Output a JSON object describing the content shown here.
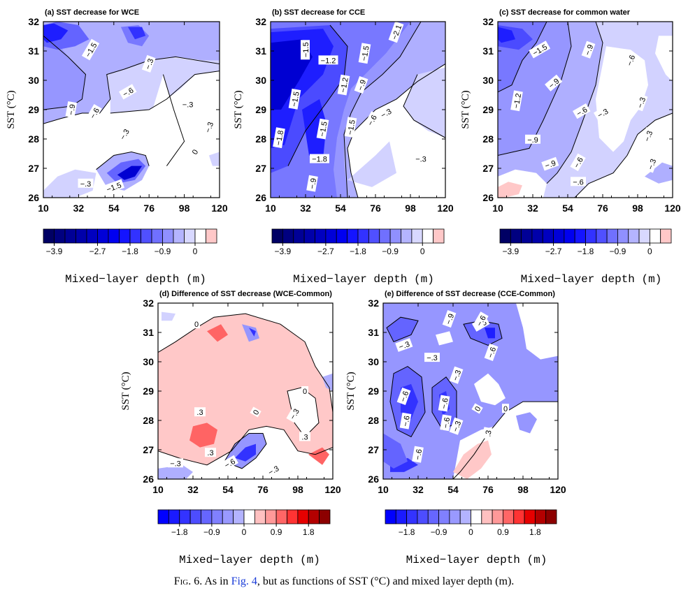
{
  "chart_data": [
    {
      "panel": "a",
      "type": "heatmap",
      "title": "(a) SST decrease for WCE",
      "xlabel": "Mixed−layer depth (m)",
      "ylabel": "SST (°C)",
      "xlim": [
        10,
        120
      ],
      "ylim": [
        26,
        32
      ],
      "xticks": [
        "10",
        "32",
        "54",
        "76",
        "98",
        "120"
      ],
      "yticks": [
        "26",
        "27",
        "28",
        "29",
        "30",
        "31",
        "32"
      ],
      "colorbar": {
        "levels": [
          -4.2,
          -3.9,
          -3.6,
          -3.3,
          -3.0,
          -2.7,
          -2.4,
          -2.1,
          -1.8,
          -1.5,
          -1.2,
          -0.9,
          -0.6,
          -0.3,
          0,
          0.3,
          0.6
        ],
        "tick_labels": [
          "−3.9",
          "−2.7",
          "−1.8",
          "−0.9",
          "0"
        ]
      },
      "contour_labels": [
        "−1.5",
        "−.3",
        "−.6",
        "−.9",
        "−.6",
        "−.3",
        "−.3",
        "−.3",
        "0",
        "−.3",
        "−1.5"
      ]
    },
    {
      "panel": "b",
      "type": "heatmap",
      "title": "(b) SST decrease for CCE",
      "xlabel": "Mixed−layer depth (m)",
      "ylabel": "SST (°C)",
      "xlim": [
        10,
        120
      ],
      "ylim": [
        26,
        32
      ],
      "xticks": [
        "10",
        "32",
        "54",
        "76",
        "98",
        "120"
      ],
      "yticks": [
        "26",
        "27",
        "28",
        "29",
        "30",
        "31",
        "32"
      ],
      "colorbar": {
        "levels": [
          -4.2,
          -3.9,
          -3.6,
          -3.3,
          -3.0,
          -2.7,
          -2.4,
          -2.1,
          -1.8,
          -1.5,
          -1.2,
          -0.9,
          -0.6,
          -0.3,
          0,
          0.3,
          0.6
        ],
        "tick_labels": [
          "−3.9",
          "−2.7",
          "−1.8",
          "−0.9",
          "0"
        ]
      },
      "contour_labels": [
        "−2.1",
        "−1.5",
        "−1.2",
        "−1.5",
        "−1.5",
        "−1.2",
        "−1.5",
        "−1.5",
        "−.9",
        "−.6",
        "−.3",
        "−1.8",
        "−1.8",
        "−.9",
        "−.3"
      ]
    },
    {
      "panel": "c",
      "type": "heatmap",
      "title": "(c) SST decrease for common water",
      "xlabel": "Mixed−layer depth (m)",
      "ylabel": "SST (°C)",
      "xlim": [
        10,
        120
      ],
      "ylim": [
        26,
        32
      ],
      "xticks": [
        "10",
        "32",
        "54",
        "76",
        "98",
        "120"
      ],
      "yticks": [
        "26",
        "27",
        "28",
        "29",
        "30",
        "31",
        "32"
      ],
      "colorbar": {
        "levels": [
          -4.2,
          -3.9,
          -3.6,
          -3.3,
          -3.0,
          -2.7,
          -2.4,
          -2.1,
          -1.8,
          -1.5,
          -1.2,
          -0.9,
          -0.6,
          -0.3,
          0,
          0.3,
          0.6
        ],
        "tick_labels": [
          "−3.9",
          "−2.7",
          "−1.8",
          "−0.9",
          "0"
        ]
      },
      "contour_labels": [
        "−1.5",
        "−.9",
        "−.6",
        "−.3",
        "−.9",
        "−1.2",
        "−.6",
        "−.3",
        "−.9",
        "−.3",
        "−.9",
        "−.6",
        "−.6",
        "−.3"
      ]
    },
    {
      "panel": "d",
      "type": "heatmap",
      "title": "(d) Difference of SST decrease (WCE-Common)",
      "xlabel": "Mixed−layer depth (m)",
      "ylabel": "SST (°C)",
      "xlim": [
        10,
        120
      ],
      "ylim": [
        26,
        32
      ],
      "xticks": [
        "10",
        "32",
        "54",
        "76",
        "98",
        "120"
      ],
      "yticks": [
        "26",
        "27",
        "28",
        "29",
        "30",
        "31",
        "32"
      ],
      "colorbar": {
        "levels": [
          -2.4,
          -2.1,
          -1.8,
          -1.5,
          -1.2,
          -0.9,
          -0.6,
          -0.3,
          0,
          0.3,
          0.6,
          0.9,
          1.2,
          1.5,
          1.8,
          2.1,
          2.4
        ],
        "tick_labels": [
          "−1.8",
          "−0.9",
          "0",
          "0.9",
          "1.8"
        ]
      },
      "contour_labels": [
        "0",
        "0",
        ".3",
        "0",
        "−.3",
        ".3",
        "−.3",
        ".3",
        "−.6",
        "−.3"
      ]
    },
    {
      "panel": "e",
      "type": "heatmap",
      "title": "(e) Difference of SST decrease (CCE-Common)",
      "xlabel": "Mixed−layer depth (m)",
      "ylabel": "SST (°C)",
      "xlim": [
        10,
        120
      ],
      "ylim": [
        26,
        32
      ],
      "xticks": [
        "10",
        "32",
        "54",
        "76",
        "98",
        "120"
      ],
      "yticks": [
        "26",
        "27",
        "28",
        "29",
        "30",
        "31",
        "32"
      ],
      "colorbar": {
        "levels": [
          -2.4,
          -2.1,
          -1.8,
          -1.5,
          -1.2,
          -0.9,
          -0.6,
          -0.3,
          0,
          0.3,
          0.6,
          0.9,
          1.2,
          1.5,
          1.8,
          2.1,
          2.4
        ],
        "tick_labels": [
          "−1.8",
          "−0.9",
          "0",
          "0.9",
          "1.8"
        ]
      },
      "contour_labels": [
        "−.9",
        "−.6",
        "−.3",
        "−.3",
        "−.6",
        "−.3",
        "−.6",
        "−.6",
        "−.6",
        "−.6",
        "−.3",
        "0",
        "0",
        ".3",
        "−.6",
        "−.6"
      ]
    }
  ],
  "caption": {
    "fig_label": "Fig. 6.",
    "pre": " As in ",
    "link": "Fig. 4",
    "post": ", but as functions of SST (°C) and mixed layer depth (m)."
  },
  "colors": {
    "neg": [
      "#000064",
      "#00008c",
      "#0000b4",
      "#0000d2",
      "#0000f0",
      "#1e1eff",
      "#3232ff",
      "#4b4bff",
      "#6464ff",
      "#7878ff",
      "#9696ff",
      "#afafff",
      "#d2d2ff",
      "#ffffff"
    ],
    "pos": [
      "#ffffff",
      "#ffc8c8",
      "#ff6464",
      "#ff3232",
      "#e60000",
      "#c80000",
      "#a00000",
      "#780000"
    ]
  }
}
